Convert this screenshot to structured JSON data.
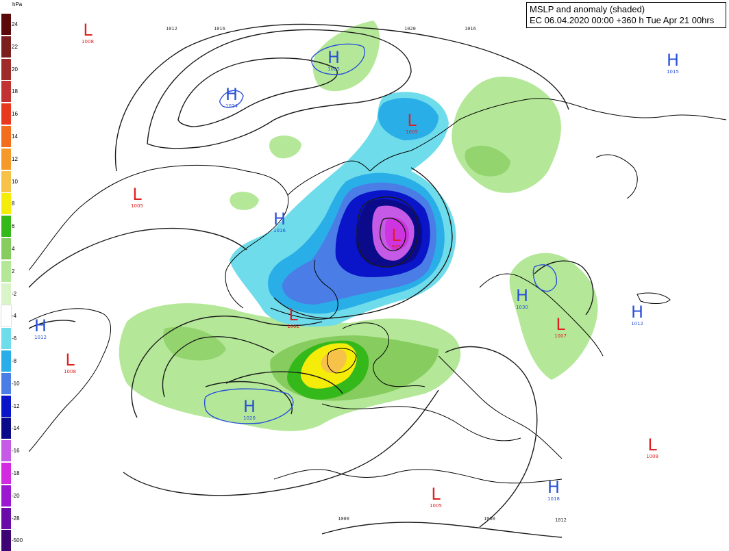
{
  "title": {
    "line1": "MSLP and anomaly (shaded)",
    "line2": "EC 06.04.2020 00:00 +360 h Tue Apr 21 00hrs"
  },
  "legend": {
    "unit": "hPa",
    "ticks": [
      "24",
      "22",
      "20",
      "18",
      "16",
      "14",
      "12",
      "10",
      "8",
      "6",
      "4",
      "2",
      "-2",
      "-4",
      "-6",
      "-8",
      "-10",
      "-12",
      "-14",
      "-16",
      "-18",
      "-20",
      "-28",
      "-500"
    ],
    "colors": [
      "#5a0a0a",
      "#7a1e1e",
      "#9e2a2a",
      "#c23232",
      "#e8381e",
      "#f26d1c",
      "#f59a2a",
      "#f7c24a",
      "#f5ec0a",
      "#35b81a",
      "#86cc5e",
      "#b4e898",
      "#d8f4c8",
      "#ffffff",
      "#6edcea",
      "#2aaee8",
      "#4a7ee6",
      "#0a14c8",
      "#0a0a8a",
      "#c45ae6",
      "#d22ae0",
      "#9a18d0",
      "#6a0aa8",
      "#3e0474"
    ]
  },
  "contour_labels": [
    "1012",
    "1016",
    "1020",
    "1016",
    "1000",
    "1000",
    "1012"
  ],
  "pressure_centers": [
    {
      "type": "L",
      "value": "1008",
      "color": "#e02020"
    },
    {
      "type": "H",
      "value": "1025",
      "color": "#2850d8"
    },
    {
      "type": "H",
      "value": "1024",
      "color": "#2850d8"
    },
    {
      "type": "L",
      "value": "1005",
      "color": "#e02020"
    },
    {
      "type": "H",
      "value": "1015",
      "color": "#2850d8"
    },
    {
      "type": "L",
      "value": "1005",
      "color": "#e02020"
    },
    {
      "type": "H",
      "value": "1016",
      "color": "#2850d8"
    },
    {
      "type": "L",
      "value": "993",
      "color": "#e02020"
    },
    {
      "type": "H",
      "value": "1012",
      "color": "#2850d8"
    },
    {
      "type": "H",
      "value": "1030",
      "color": "#2850d8"
    },
    {
      "type": "L",
      "value": "1007",
      "color": "#e02020"
    },
    {
      "type": "H",
      "value": "1012",
      "color": "#2850d8"
    },
    {
      "type": "L",
      "value": "1002",
      "color": "#e02020"
    },
    {
      "type": "L",
      "value": "1008",
      "color": "#e02020"
    },
    {
      "type": "H",
      "value": "1026",
      "color": "#2850d8"
    },
    {
      "type": "L",
      "value": "1008",
      "color": "#e02020"
    },
    {
      "type": "H",
      "value": "1018",
      "color": "#2850d8"
    },
    {
      "type": "L",
      "value": "1005",
      "color": "#e02020"
    }
  ]
}
